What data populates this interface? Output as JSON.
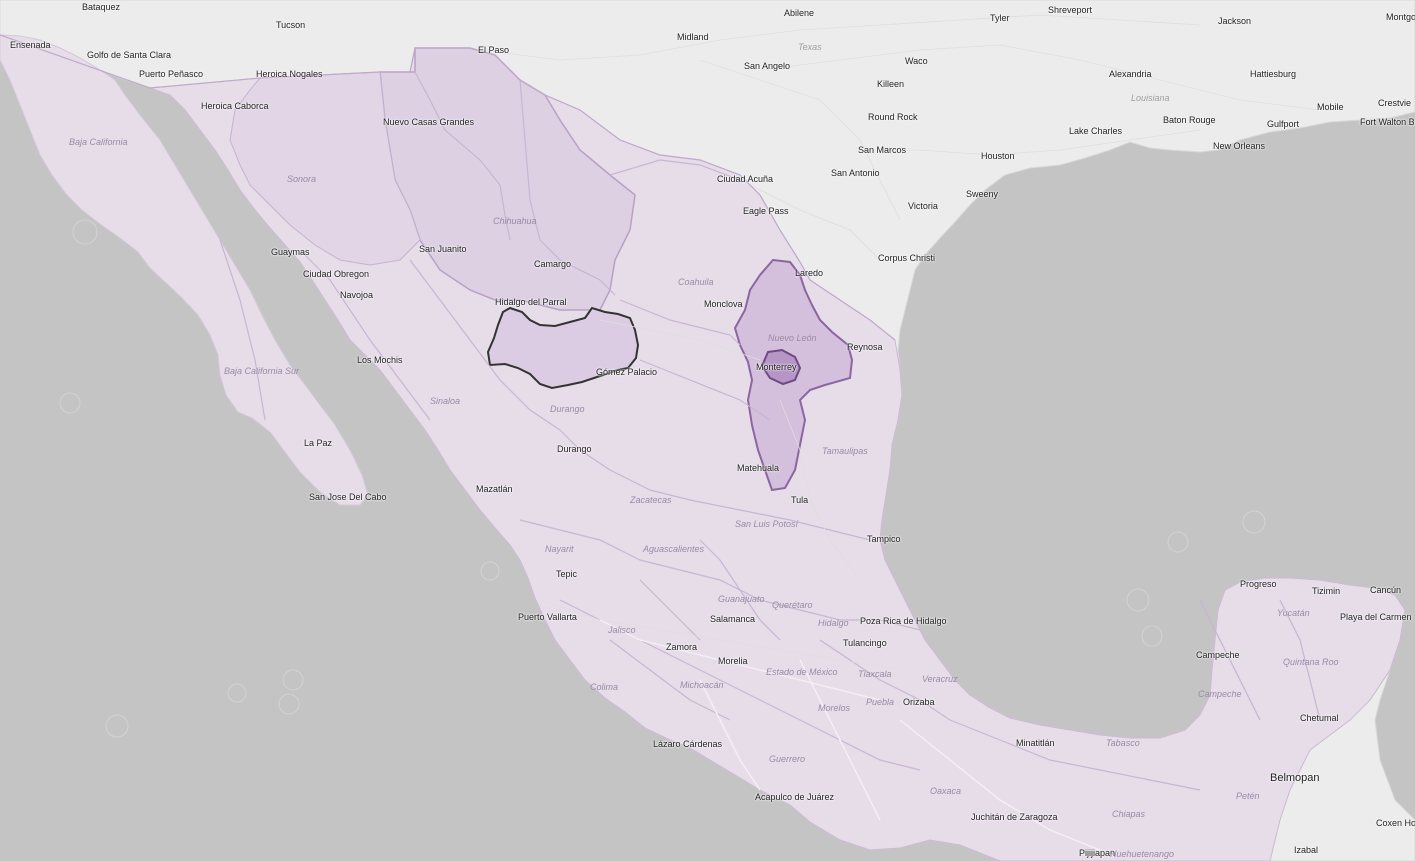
{
  "map": {
    "cities": [
      {
        "id": "bataquez",
        "name": "Bataquez"
      },
      {
        "id": "ensenada",
        "name": "Ensenada"
      },
      {
        "id": "tucson",
        "name": "Tucson"
      },
      {
        "id": "el-paso",
        "name": "El Paso"
      },
      {
        "id": "midland",
        "name": "Midland"
      },
      {
        "id": "abilene",
        "name": "Abilene"
      },
      {
        "id": "tyler",
        "name": "Tyler"
      },
      {
        "id": "shreveport",
        "name": "Shreveport"
      },
      {
        "id": "jackson",
        "name": "Jackson"
      },
      {
        "id": "montgomery",
        "name": "Montgo"
      },
      {
        "id": "golfo-santa-clara",
        "name": "Golfo de Santa Clara"
      },
      {
        "id": "puerto-penasco",
        "name": "Puerto Peñasco"
      },
      {
        "id": "heroica-nogales",
        "name": "Heroica Nogales"
      },
      {
        "id": "heroica-caborca",
        "name": "Heroica Caborca"
      },
      {
        "id": "nuevo-casas-grandes",
        "name": "Nuevo Casas Grandes"
      },
      {
        "id": "san-angelo",
        "name": "San Angelo"
      },
      {
        "id": "waco",
        "name": "Waco"
      },
      {
        "id": "killeen",
        "name": "Killeen"
      },
      {
        "id": "alexandria",
        "name": "Alexandria"
      },
      {
        "id": "hattiesburg",
        "name": "Hattiesburg"
      },
      {
        "id": "mobile",
        "name": "Mobile"
      },
      {
        "id": "crestview",
        "name": "Crestvie"
      },
      {
        "id": "round-rock",
        "name": "Round Rock"
      },
      {
        "id": "lake-charles",
        "name": "Lake Charles"
      },
      {
        "id": "baton-rouge",
        "name": "Baton Rouge"
      },
      {
        "id": "gulfport",
        "name": "Gulfport"
      },
      {
        "id": "fort-walton",
        "name": "Fort Walton Be"
      },
      {
        "id": "san-marcos",
        "name": "San Marcos"
      },
      {
        "id": "houston",
        "name": "Houston"
      },
      {
        "id": "new-orleans",
        "name": "New Orleans"
      },
      {
        "id": "san-antonio",
        "name": "San Antonio"
      },
      {
        "id": "ciudad-acuna",
        "name": "Ciudad Acuña"
      },
      {
        "id": "sweeny",
        "name": "Sweeny"
      },
      {
        "id": "victoria",
        "name": "Victoria"
      },
      {
        "id": "eagle-pass",
        "name": "Eagle Pass"
      },
      {
        "id": "guaymas",
        "name": "Guaymas"
      },
      {
        "id": "san-juanito",
        "name": "San Juanito"
      },
      {
        "id": "camargo",
        "name": "Camargo"
      },
      {
        "id": "ciudad-obregon",
        "name": "Ciudad Obregon"
      },
      {
        "id": "corpus-christi",
        "name": "Corpus Christi"
      },
      {
        "id": "laredo",
        "name": "Laredo"
      },
      {
        "id": "navojoa",
        "name": "Navojoa"
      },
      {
        "id": "hidalgo-parral",
        "name": "Hidalgo del Parral"
      },
      {
        "id": "monclova",
        "name": "Monclova"
      },
      {
        "id": "reynosa",
        "name": "Reynosa"
      },
      {
        "id": "los-mochis",
        "name": "Los Mochis"
      },
      {
        "id": "gomez-palacio",
        "name": "Gómez Palacio"
      },
      {
        "id": "monterrey",
        "name": "Monterrey"
      },
      {
        "id": "la-paz",
        "name": "La Paz"
      },
      {
        "id": "durango-city",
        "name": "Durango"
      },
      {
        "id": "matehuala",
        "name": "Matehuala"
      },
      {
        "id": "mazatlan",
        "name": "Mazatlán"
      },
      {
        "id": "san-jose-cabo",
        "name": "San Jose Del Cabo"
      },
      {
        "id": "tula",
        "name": "Tula"
      },
      {
        "id": "tampico",
        "name": "Tampico"
      },
      {
        "id": "tepic",
        "name": "Tepic"
      },
      {
        "id": "progreso",
        "name": "Progreso"
      },
      {
        "id": "tizimin",
        "name": "Tizimin"
      },
      {
        "id": "cancun",
        "name": "Cancún"
      },
      {
        "id": "playa-del-carmen",
        "name": "Playa del Carmen"
      },
      {
        "id": "puerto-vallarta",
        "name": "Puerto Vallarta"
      },
      {
        "id": "salamanca",
        "name": "Salamanca"
      },
      {
        "id": "poza-rica",
        "name": "Poza Rica de Hidalgo"
      },
      {
        "id": "zamora",
        "name": "Zamora"
      },
      {
        "id": "tulancingo",
        "name": "Tulancingo"
      },
      {
        "id": "campeche",
        "name": "Campeche"
      },
      {
        "id": "morelia",
        "name": "Morelia"
      },
      {
        "id": "orizaba",
        "name": "Orizaba"
      },
      {
        "id": "chetumal",
        "name": "Chetumal"
      },
      {
        "id": "lazaro-cardenas",
        "name": "Lázaro Cárdenas"
      },
      {
        "id": "minatitlan",
        "name": "Minatitlán"
      },
      {
        "id": "belmopan",
        "name": "Belmopan"
      },
      {
        "id": "acapulco",
        "name": "Acapulco de Juárez"
      },
      {
        "id": "juchitan",
        "name": "Juchitán de Zaragoza"
      },
      {
        "id": "coxen-hole",
        "name": "Coxen Ho"
      },
      {
        "id": "pijijiapan",
        "name": "Pijijiapan"
      },
      {
        "id": "izabal",
        "name": "Izabal"
      }
    ],
    "states": [
      {
        "id": "baja-california",
        "name": "Baja California"
      },
      {
        "id": "sonora",
        "name": "Sonora"
      },
      {
        "id": "chihuahua",
        "name": "Chihuahua"
      },
      {
        "id": "coahuila",
        "name": "Coahuila"
      },
      {
        "id": "nuevo-leon",
        "name": "Nuevo León"
      },
      {
        "id": "baja-california-sur",
        "name": "Baja California Sur"
      },
      {
        "id": "sinaloa",
        "name": "Sinaloa"
      },
      {
        "id": "durango-state",
        "name": "Durango"
      },
      {
        "id": "tamaulipas",
        "name": "Tamaulipas"
      },
      {
        "id": "zacatecas",
        "name": "Zacatecas"
      },
      {
        "id": "san-luis-potosi",
        "name": "San Luis Potosí"
      },
      {
        "id": "nayarit",
        "name": "Nayarit"
      },
      {
        "id": "aguascalientes",
        "name": "Aguascalientes"
      },
      {
        "id": "guanajuato",
        "name": "Guanajuato"
      },
      {
        "id": "queretaro",
        "name": "Querétaro"
      },
      {
        "id": "jalisco",
        "name": "Jalisco"
      },
      {
        "id": "hidalgo-state",
        "name": "Hidalgo"
      },
      {
        "id": "tlaxcala",
        "name": "Tlaxcala"
      },
      {
        "id": "estado-mexico",
        "name": "Estado de México"
      },
      {
        "id": "puebla",
        "name": "Puebla"
      },
      {
        "id": "veracruz",
        "name": "Veracruz"
      },
      {
        "id": "colima",
        "name": "Colima"
      },
      {
        "id": "michoacan",
        "name": "Michoacán"
      },
      {
        "id": "morelos",
        "name": "Morelos"
      },
      {
        "id": "guerrero",
        "name": "Guerrero"
      },
      {
        "id": "oaxaca",
        "name": "Oaxaca"
      },
      {
        "id": "tabasco",
        "name": "Tabasco"
      },
      {
        "id": "chiapas",
        "name": "Chiapas"
      },
      {
        "id": "yucatan",
        "name": "Yucatán"
      },
      {
        "id": "quintana-roo",
        "name": "Quintana Roo"
      },
      {
        "id": "campeche-state",
        "name": "Campeche"
      },
      {
        "id": "peten",
        "name": "Petén"
      },
      {
        "id": "huehuetenango",
        "name": "Huehuetenango"
      }
    ],
    "us_states": [
      {
        "id": "texas",
        "name": "Texas"
      },
      {
        "id": "louisiana",
        "name": "Louisiana"
      }
    ],
    "colors": {
      "water": "#c4c4c4",
      "land": "#ececec",
      "us_land": "#ebebeb",
      "mexico_fill": "#e6dde9",
      "region_fill": "#d9c7df",
      "highlight_stroke": "#333333",
      "nuevo_leon_stroke": "#8b66a0"
    }
  }
}
